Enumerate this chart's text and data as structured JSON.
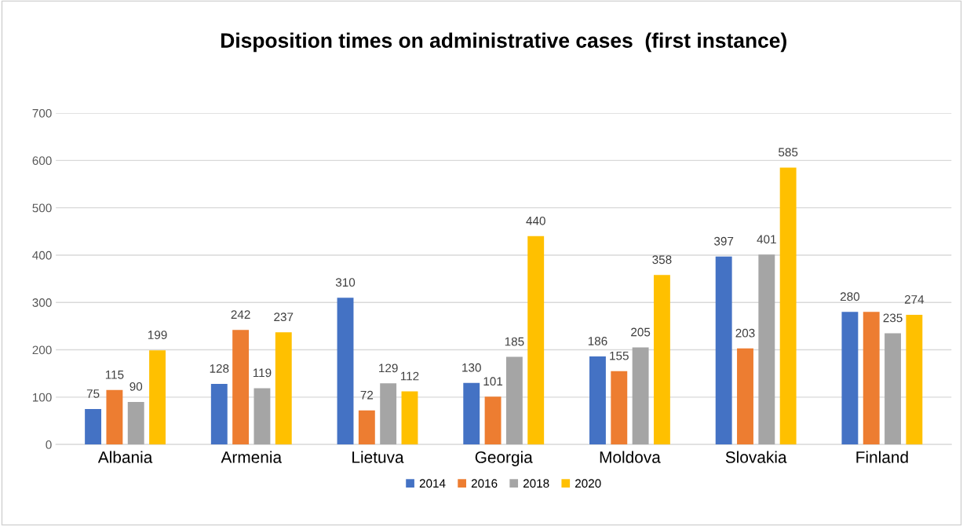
{
  "chart_data": {
    "type": "bar",
    "title": "Disposition times on administrative cases  (first instance)",
    "categories": [
      "Albania",
      "Armenia",
      "Lietuva",
      "Georgia",
      "Moldova",
      "Slovakia",
      "Finland"
    ],
    "series": [
      {
        "name": "2014",
        "color": "#4472c4",
        "values": [
          75,
          128,
          310,
          130,
          186,
          397,
          280
        ],
        "value_labels": [
          "75",
          "128",
          "310",
          "130",
          "186",
          "397",
          "280"
        ]
      },
      {
        "name": "2016",
        "color": "#ed7d31",
        "values": [
          115,
          242,
          72,
          101,
          155,
          203,
          280
        ],
        "value_labels": [
          "115",
          "242",
          "72",
          "101",
          "155",
          "203",
          null
        ]
      },
      {
        "name": "2018",
        "color": "#a5a5a5",
        "values": [
          90,
          119,
          129,
          185,
          205,
          401,
          235
        ],
        "value_labels": [
          "90",
          "119",
          "129",
          "185",
          "205",
          "401",
          "235"
        ]
      },
      {
        "name": "2020",
        "color": "#ffc000",
        "values": [
          199,
          237,
          112,
          440,
          358,
          585,
          274
        ],
        "value_labels": [
          "199",
          "237",
          "112",
          "440",
          "358",
          "585",
          "274"
        ]
      }
    ],
    "ylim": [
      0,
      700
    ],
    "yticks": [
      0,
      100,
      200,
      300,
      400,
      500,
      600,
      700
    ],
    "grid": "y",
    "legend": "bottom"
  }
}
